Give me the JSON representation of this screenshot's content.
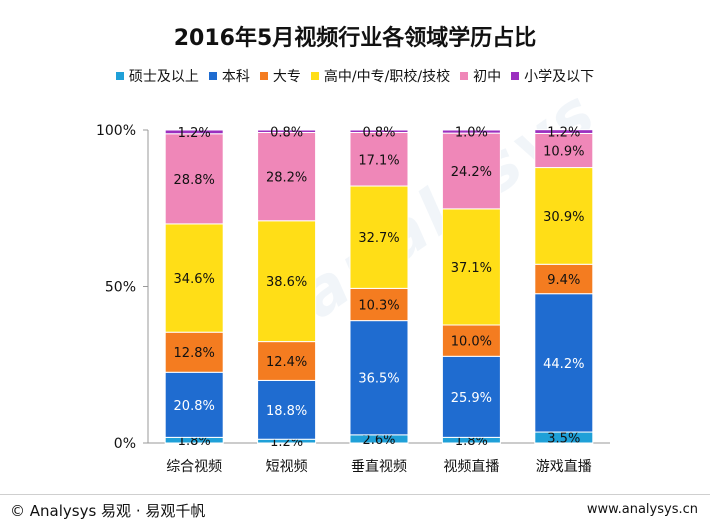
{
  "chart_data": {
    "type": "bar",
    "stacked": true,
    "title": "2016年5月视频行业各领域学历占比",
    "categories": [
      "综合视频",
      "短视频",
      "垂直视频",
      "视频直播",
      "游戏直播"
    ],
    "yticks": [
      "0%",
      "50%",
      "100%"
    ],
    "ylim": [
      0,
      100
    ],
    "series": [
      {
        "name": "硕士及以上",
        "color": "#1fa0d8",
        "values": [
          1.8,
          1.2,
          2.6,
          1.8,
          3.5
        ],
        "labels": [
          "1.8%",
          "1.2%",
          "2.6%",
          "1.8%",
          "3.5%"
        ]
      },
      {
        "name": "本科",
        "color": "#1f6cd0",
        "values": [
          20.8,
          18.8,
          36.5,
          25.9,
          44.2
        ],
        "labels": [
          "20.8%",
          "18.8%",
          "36.5%",
          "25.9%",
          "44.2%"
        ]
      },
      {
        "name": "大专",
        "color": "#f47c20",
        "values": [
          12.8,
          12.4,
          10.3,
          10.0,
          9.4
        ],
        "labels": [
          "12.8%",
          "12.4%",
          "10.3%",
          "10.0%",
          "9.4%"
        ]
      },
      {
        "name": "高中/中专/职校/技校",
        "color": "#ffde17",
        "values": [
          34.6,
          38.6,
          32.7,
          37.1,
          30.9
        ],
        "labels": [
          "34.6%",
          "38.6%",
          "32.7%",
          "37.1%",
          "30.9%"
        ]
      },
      {
        "name": "初中",
        "color": "#ef87b8",
        "values": [
          28.8,
          28.2,
          17.1,
          24.2,
          10.9
        ],
        "labels": [
          "28.8%",
          "28.2%",
          "17.1%",
          "24.2%",
          "10.9%"
        ]
      },
      {
        "name": "小学及以下",
        "color": "#9b2fbf",
        "values": [
          1.2,
          0.8,
          0.8,
          1.0,
          1.2
        ],
        "labels": [
          "1.2%",
          "0.8%",
          "0.8%",
          "1.0%",
          "1.2%"
        ]
      }
    ]
  },
  "footer": {
    "left": "© Analysys 易观 · 易观千帆",
    "right": "www.analysys.cn"
  },
  "watermark": "analysys"
}
